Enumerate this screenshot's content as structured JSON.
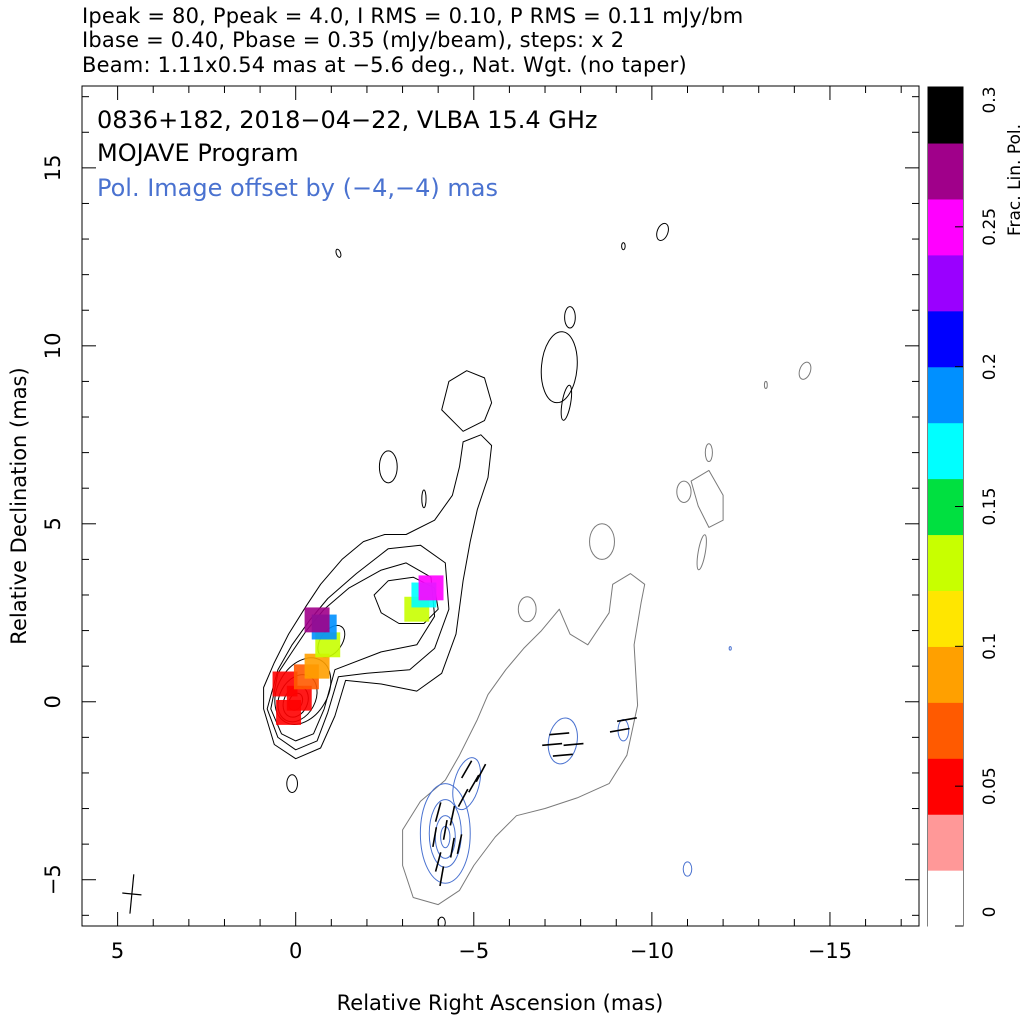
{
  "header": {
    "line1": "Ipeak = 80, Ppeak = 4.0, I RMS = 0.10, P RMS = 0.11 mJy/bm",
    "line2": "Ibase = 0.40, Pbase = 0.35 (mJy/beam), steps: x 2",
    "line3": "Beam: 1.11x0.54 mas at −5.6 deg., Nat. Wgt. (no taper)"
  },
  "annotations": {
    "source": "0836+182, 2018−04−22, VLBA 15.4 GHz",
    "program": "MOJAVE Program",
    "offset_note": "Pol. Image offset by (−4,−4) mas",
    "offset_color": "#4a72d0"
  },
  "chart_data": {
    "type": "contour",
    "xlabel": "Relative Right Ascension (mas)",
    "ylabel": "Relative Declination (mas)",
    "xlim": [
      6,
      -17.5
    ],
    "ylim": [
      -6.3,
      17.3
    ],
    "x_ticks": [
      5,
      0,
      -5,
      -10,
      -15
    ],
    "x_tick_labels": [
      "5",
      "0",
      "−5",
      "−10",
      "−15"
    ],
    "y_ticks": [
      -5,
      0,
      5,
      10,
      15
    ],
    "y_tick_labels": [
      "−5",
      "0",
      "5",
      "10",
      "15"
    ],
    "stokes_I": {
      "color": "#000000",
      "peak_mJy_per_beam": 80,
      "rms_mJy_per_beam": 0.1,
      "base_mJy_per_beam": 0.4,
      "level_step": "x 2",
      "core_position_mas": [
        0,
        0
      ],
      "jet_knot_position_mas": [
        -3.2,
        3.2
      ]
    },
    "polarized_intensity": {
      "color": "#7a7a7a",
      "peak_mJy_per_beam": 4.0,
      "rms_mJy_per_beam": 0.11,
      "base_mJy_per_beam": 0.35,
      "image_offset_mas": [
        -4,
        -4
      ]
    },
    "beam": {
      "major_mas": 1.11,
      "minor_mas": 0.54,
      "pa_deg": -5.6,
      "weighting": "Natural",
      "taper": "none"
    },
    "colorbar": {
      "label": "Frac. Lin. Pol.",
      "range": [
        0,
        0.3
      ],
      "ticks": [
        0,
        0.05,
        0.1,
        0.15,
        0.2,
        0.25,
        0.3
      ],
      "tick_labels": [
        "0",
        "0.05",
        "0.1",
        "0.15",
        "0.2",
        "0.25",
        "0.3"
      ],
      "colors": [
        "#ffffff",
        "#ff9898",
        "#ff0000",
        "#ff5a00",
        "#ffa000",
        "#ffe600",
        "#c8ff00",
        "#00e040",
        "#00ffff",
        "#0090ff",
        "#0000ff",
        "#9a00ff",
        "#ff00ff",
        "#a0008a",
        "#000000"
      ]
    },
    "frac_pol_pixels": [
      {
        "x": -0.1,
        "y": 0.1,
        "v": 0.04
      },
      {
        "x": 0.3,
        "y": 0.5,
        "v": 0.05
      },
      {
        "x": -0.3,
        "y": 0.7,
        "v": 0.07
      },
      {
        "x": 0.2,
        "y": -0.3,
        "v": 0.05
      },
      {
        "x": -0.6,
        "y": 1.0,
        "v": 0.09
      },
      {
        "x": -0.9,
        "y": 1.6,
        "v": 0.13
      },
      {
        "x": -0.8,
        "y": 2.1,
        "v": 0.18
      },
      {
        "x": -0.6,
        "y": 2.3,
        "v": 0.27
      },
      {
        "x": -3.4,
        "y": 2.6,
        "v": 0.12
      },
      {
        "x": -3.6,
        "y": 3.0,
        "v": 0.16
      },
      {
        "x": -3.8,
        "y": 3.2,
        "v": 0.25
      }
    ]
  }
}
